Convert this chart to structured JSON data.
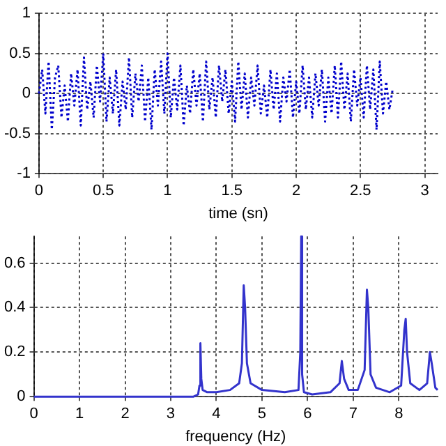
{
  "chart_data": [
    {
      "type": "line",
      "xlabel": "time (sn)",
      "xlim": [
        0,
        3.1
      ],
      "xticks": [
        0,
        0.5,
        1,
        1.5,
        2,
        2.5,
        3
      ],
      "ylim": [
        -1,
        1
      ],
      "yticks": [
        -1,
        -0.5,
        0,
        0.5,
        1
      ],
      "grid": true,
      "line_style": "dotted",
      "marker": "none",
      "series": [
        {
          "color": "#0000cc",
          "x": [
            0,
            0.025,
            0.05,
            0.075,
            0.1,
            0.125,
            0.15,
            0.175,
            0.2,
            0.225,
            0.25,
            0.275,
            0.3,
            0.325,
            0.35,
            0.375,
            0.4,
            0.425,
            0.45,
            0.475,
            0.5,
            0.525,
            0.55,
            0.575,
            0.6,
            0.625,
            0.65,
            0.675,
            0.7,
            0.725,
            0.75,
            0.775,
            0.8,
            0.825,
            0.85,
            0.875,
            0.9,
            0.925,
            0.95,
            0.975,
            1,
            1.025,
            1.05,
            1.075,
            1.1,
            1.125,
            1.15,
            1.175,
            1.2,
            1.225,
            1.25,
            1.275,
            1.3,
            1.325,
            1.35,
            1.375,
            1.4,
            1.425,
            1.45,
            1.475,
            1.5,
            1.525,
            1.55,
            1.575,
            1.6,
            1.625,
            1.65,
            1.675,
            1.7,
            1.725,
            1.75,
            1.775,
            1.8,
            1.825,
            1.85,
            1.875,
            1.9,
            1.925,
            1.95,
            1.975,
            2,
            2.025,
            2.05,
            2.075,
            2.1,
            2.125,
            2.15,
            2.175,
            2.2,
            2.225,
            2.25,
            2.275,
            2.3,
            2.325,
            2.35,
            2.375,
            2.4,
            2.425,
            2.45,
            2.475,
            2.5,
            2.525,
            2.55,
            2.575,
            2.6,
            2.625,
            2.65,
            2.675,
            2.7,
            2.725,
            2.75
          ],
          "values": [
            0,
            0.3,
            -0.25,
            0.4,
            -0.45,
            0.2,
            0.35,
            -0.3,
            0.1,
            -0.35,
            0.25,
            -0.15,
            0.3,
            -0.4,
            0.45,
            -0.2,
            0.15,
            -0.3,
            0.35,
            -0.1,
            0.5,
            -0.35,
            0.2,
            -0.25,
            0.3,
            -0.4,
            0.15,
            -0.2,
            0.45,
            -0.3,
            0.25,
            -0.1,
            0.35,
            -0.35,
            0.2,
            -0.45,
            0.3,
            -0.15,
            0.4,
            -0.25,
            0.5,
            -0.3,
            0.2,
            -0.2,
            0.35,
            -0.4,
            0.1,
            -0.25,
            0.3,
            -0.15,
            0.25,
            -0.35,
            0.4,
            -0.2,
            0.2,
            -0.3,
            0.35,
            -0.1,
            0.3,
            -0.25,
            0.15,
            -0.35,
            0.4,
            -0.2,
            0.25,
            -0.3,
            0.2,
            -0.15,
            0.35,
            -0.25,
            0.1,
            -0.3,
            0.3,
            -0.2,
            0.25,
            -0.35,
            0.2,
            -0.1,
            0.3,
            -0.3,
            0.15,
            -0.25,
            0.35,
            -0.2,
            0.2,
            -0.3,
            0.25,
            -0.15,
            0.3,
            -0.35,
            0.2,
            -0.25,
            0.35,
            -0.3,
            0.4,
            -0.2,
            0.25,
            -0.35,
            0.3,
            -0.15,
            0.2,
            -0.3,
            0.35,
            -0.2,
            0.3,
            -0.45,
            0.4,
            -0.25,
            0.15,
            -0.2,
            0.05
          ]
        }
      ]
    },
    {
      "type": "line",
      "xlabel": "frequency (Hz)",
      "xlim": [
        0,
        8.85
      ],
      "xticks": [
        0,
        1,
        2,
        3,
        4,
        5,
        6,
        7,
        8
      ],
      "ylim": [
        0,
        0.72
      ],
      "yticks": [
        0,
        0.2,
        0.4,
        0.6
      ],
      "grid": true,
      "line_style": "solid",
      "marker": "none",
      "series": [
        {
          "color": "#3333cc",
          "x": [
            0,
            3.5,
            3.6,
            3.63,
            3.65,
            3.67,
            3.7,
            3.8,
            4,
            4.3,
            4.5,
            4.56,
            4.6,
            4.63,
            4.67,
            4.75,
            5,
            5.5,
            5.8,
            5.84,
            5.86,
            5.88,
            5.92,
            6.1,
            6.5,
            6.7,
            6.75,
            6.8,
            6.9,
            7.1,
            7.25,
            7.3,
            7.33,
            7.38,
            7.5,
            7.8,
            8.05,
            8.12,
            8.15,
            8.18,
            8.25,
            8.45,
            8.62,
            8.68,
            8.72,
            8.8,
            8.85
          ],
          "values": [
            0,
            0,
            0.01,
            0.05,
            0.24,
            0.08,
            0.03,
            0.02,
            0.02,
            0.03,
            0.06,
            0.15,
            0.5,
            0.4,
            0.15,
            0.06,
            0.03,
            0.02,
            0.03,
            0.2,
            0.72,
            0.1,
            0.02,
            0.01,
            0.02,
            0.06,
            0.16,
            0.08,
            0.03,
            0.03,
            0.12,
            0.48,
            0.4,
            0.1,
            0.04,
            0.02,
            0.05,
            0.3,
            0.35,
            0.2,
            0.06,
            0.03,
            0.06,
            0.2,
            0.15,
            0.04,
            0.03
          ]
        }
      ]
    }
  ]
}
